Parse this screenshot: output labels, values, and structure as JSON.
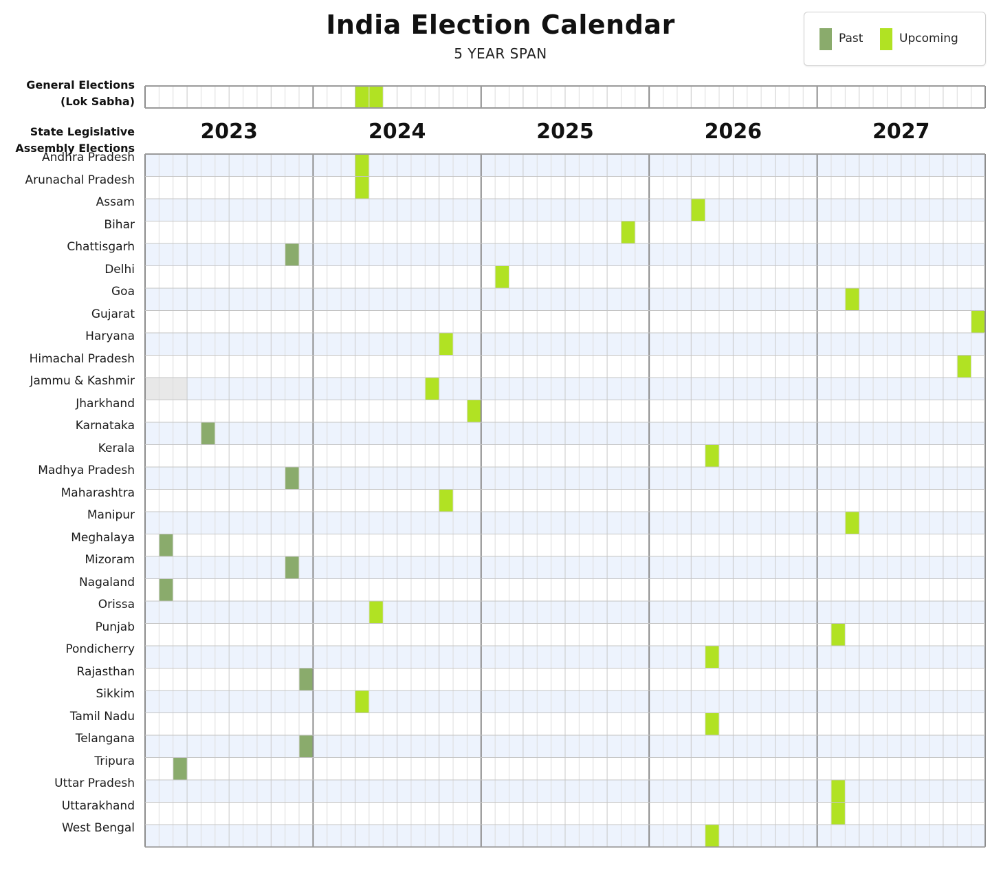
{
  "title": "India Election Calendar",
  "subtitle": "5 YEAR SPAN",
  "legend": {
    "past_label": "Past",
    "upcoming_label": "Upcoming"
  },
  "colors": {
    "past": "#8aab6c",
    "upcoming": "#b1e223",
    "na": "#e8e8e8",
    "band": "#edf3fd",
    "grid": "#dcdcdc",
    "year_divider": "#8c8c8c"
  },
  "general_label_line1": "General Elections",
  "general_label_line2": "(Lok Sabha)",
  "state_label_line1": "State Legislative",
  "state_label_line2": "Assembly Elections",
  "chart_data": {
    "type": "timeline",
    "years": [
      "2023",
      "2024",
      "2025",
      "2026",
      "2027"
    ],
    "periods_per_year": 12,
    "general": {
      "name": "General Elections (Lok Sabha)",
      "periods": [
        [
          2024,
          4
        ],
        [
          2024,
          5
        ]
      ],
      "status": "upcoming"
    },
    "states": [
      {
        "name": "Andhra Pradesh",
        "periods": [
          [
            2024,
            4
          ]
        ],
        "status": "upcoming"
      },
      {
        "name": "Arunachal Pradesh",
        "periods": [
          [
            2024,
            4
          ]
        ],
        "status": "upcoming"
      },
      {
        "name": "Assam",
        "periods": [
          [
            2026,
            4
          ]
        ],
        "status": "upcoming"
      },
      {
        "name": "Bihar",
        "periods": [
          [
            2025,
            11
          ]
        ],
        "status": "upcoming"
      },
      {
        "name": "Chattisgarh",
        "periods": [
          [
            2023,
            11
          ]
        ],
        "status": "past"
      },
      {
        "name": "Delhi",
        "periods": [
          [
            2025,
            2
          ]
        ],
        "status": "upcoming"
      },
      {
        "name": "Goa",
        "periods": [
          [
            2027,
            3
          ]
        ],
        "status": "upcoming"
      },
      {
        "name": "Gujarat",
        "periods": [
          [
            2027,
            12
          ]
        ],
        "status": "upcoming"
      },
      {
        "name": "Haryana",
        "periods": [
          [
            2024,
            10
          ]
        ],
        "status": "upcoming"
      },
      {
        "name": "Himachal Pradesh",
        "periods": [
          [
            2027,
            11
          ]
        ],
        "status": "upcoming"
      },
      {
        "name": "Jammu & Kashmir",
        "periods": [
          [
            2024,
            9
          ]
        ],
        "status": "upcoming",
        "na_periods": [
          [
            2023,
            1
          ],
          [
            2023,
            2
          ],
          [
            2023,
            3
          ]
        ]
      },
      {
        "name": "Jharkhand",
        "periods": [
          [
            2024,
            12
          ]
        ],
        "status": "upcoming"
      },
      {
        "name": "Karnataka",
        "periods": [
          [
            2023,
            5
          ]
        ],
        "status": "past"
      },
      {
        "name": "Kerala",
        "periods": [
          [
            2026,
            5
          ]
        ],
        "status": "upcoming"
      },
      {
        "name": "Madhya Pradesh",
        "periods": [
          [
            2023,
            11
          ]
        ],
        "status": "past"
      },
      {
        "name": "Maharashtra",
        "periods": [
          [
            2024,
            10
          ]
        ],
        "status": "upcoming"
      },
      {
        "name": "Manipur",
        "periods": [
          [
            2027,
            3
          ]
        ],
        "status": "upcoming"
      },
      {
        "name": "Meghalaya",
        "periods": [
          [
            2023,
            2
          ]
        ],
        "status": "past"
      },
      {
        "name": "Mizoram",
        "periods": [
          [
            2023,
            11
          ]
        ],
        "status": "past"
      },
      {
        "name": "Nagaland",
        "periods": [
          [
            2023,
            2
          ]
        ],
        "status": "past"
      },
      {
        "name": "Orissa",
        "periods": [
          [
            2024,
            5
          ]
        ],
        "status": "upcoming"
      },
      {
        "name": "Punjab",
        "periods": [
          [
            2027,
            2
          ]
        ],
        "status": "upcoming"
      },
      {
        "name": "Pondicherry",
        "periods": [
          [
            2026,
            5
          ]
        ],
        "status": "upcoming"
      },
      {
        "name": "Rajasthan",
        "periods": [
          [
            2023,
            12
          ]
        ],
        "status": "past"
      },
      {
        "name": "Sikkim",
        "periods": [
          [
            2024,
            4
          ]
        ],
        "status": "upcoming"
      },
      {
        "name": "Tamil Nadu",
        "periods": [
          [
            2026,
            5
          ]
        ],
        "status": "upcoming"
      },
      {
        "name": "Telangana",
        "periods": [
          [
            2023,
            12
          ]
        ],
        "status": "past"
      },
      {
        "name": "Tripura",
        "periods": [
          [
            2023,
            3
          ]
        ],
        "status": "past"
      },
      {
        "name": "Uttar Pradesh",
        "periods": [
          [
            2027,
            2
          ]
        ],
        "status": "upcoming"
      },
      {
        "name": "Uttarakhand",
        "periods": [
          [
            2027,
            2
          ]
        ],
        "status": "upcoming"
      },
      {
        "name": "West Bengal",
        "periods": [
          [
            2026,
            5
          ]
        ],
        "status": "upcoming"
      }
    ]
  }
}
